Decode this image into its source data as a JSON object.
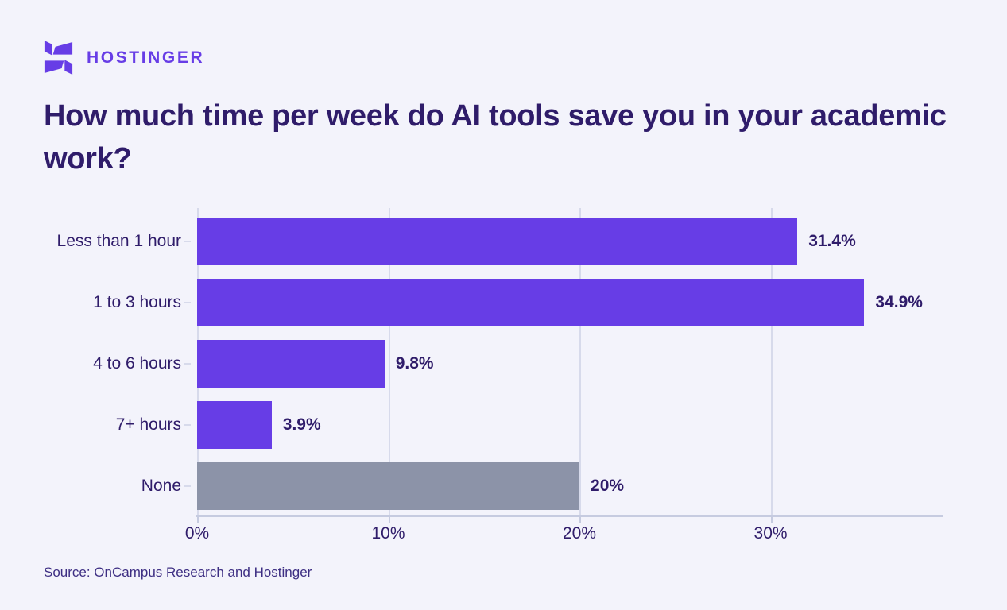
{
  "brand": {
    "logo_text": "HOSTINGER",
    "purple": "#673de6"
  },
  "title": "How much time per week do AI tools save you in your academic work?",
  "source": "Source: OnCampus Research and Hostinger",
  "colors": {
    "background": "#f3f3fb",
    "text_dark": "#2f1c6a",
    "source_text": "#3d2e83",
    "gridline": "#d7daeb",
    "axis": "#c6cbe0",
    "bar_purple": "#673de6",
    "bar_gray": "#8c93a8"
  },
  "chart_data": {
    "type": "bar",
    "orientation": "horizontal",
    "title": "How much time per week do AI tools save you in your academic work?",
    "categories": [
      "Less than 1 hour",
      "1 to 3 hours",
      "4 to 6 hours",
      "7+ hours",
      "None"
    ],
    "values": [
      31.4,
      34.9,
      9.8,
      3.9,
      20
    ],
    "value_labels": [
      "31.4%",
      "34.9%",
      "9.8%",
      "3.9%",
      "20%"
    ],
    "bar_colors": [
      "#673de6",
      "#673de6",
      "#673de6",
      "#673de6",
      "#8c93a8"
    ],
    "x_ticks": [
      {
        "value": 0,
        "label": "0%"
      },
      {
        "value": 10,
        "label": "10%"
      },
      {
        "value": 20,
        "label": "20%"
      },
      {
        "value": 30,
        "label": "30%"
      }
    ],
    "axis_max": 39,
    "xlabel": "",
    "ylabel": "",
    "grid": true,
    "legend": false
  }
}
